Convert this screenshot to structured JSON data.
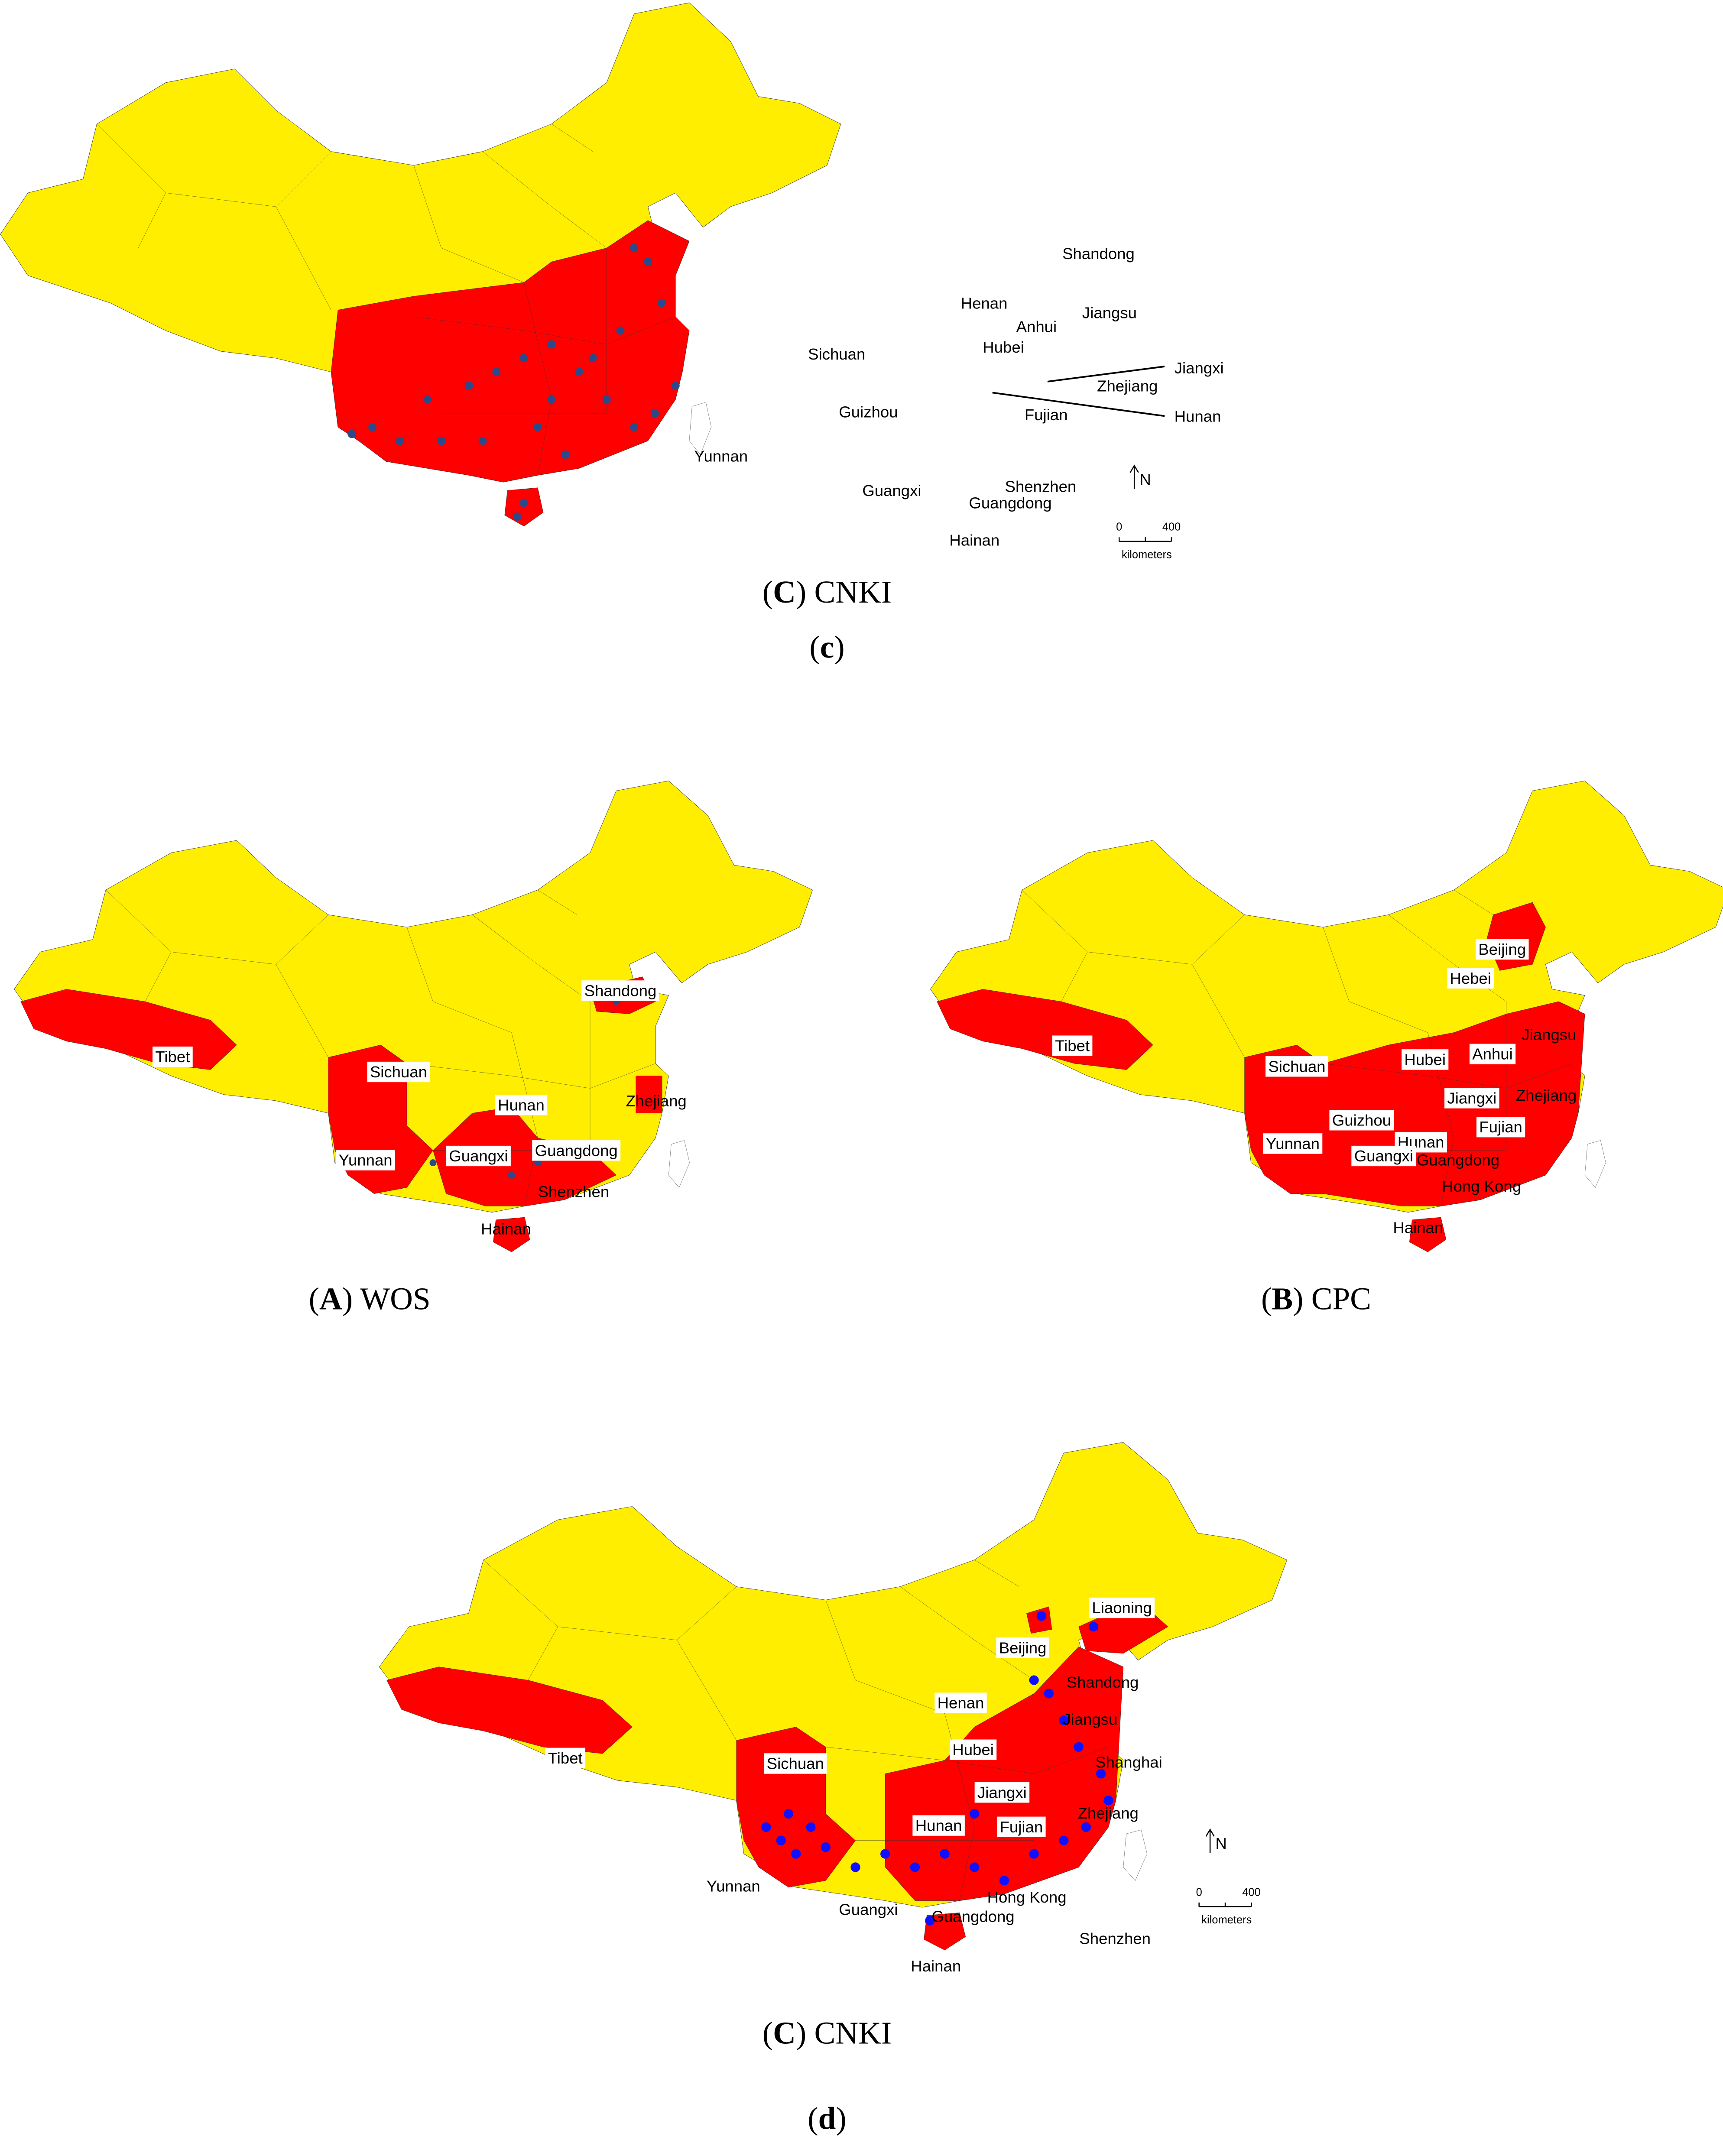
{
  "panels": [
    {
      "labels": [
        "Shandong",
        "Henan",
        "Jiangsu",
        "Anhui",
        "Sichuan",
        "Hubei",
        "Jiangxi",
        "Zhejiang",
        "Guizhou",
        "Fujian",
        "Hunan",
        "Yunnan",
        "Shenzhen",
        "Guangxi",
        "Guangdong",
        "Hainan"
      ],
      "scale": {
        "ticks": [
          0,
          400
        ],
        "unit": "kilometers",
        "north": "N"
      }
    },
    {
      "labels": [
        "Shandong",
        "Tibet",
        "Sichuan",
        "Hunan",
        "Zhejiang",
        "Yunnan",
        "Guangxi",
        "Guangdong",
        "Shenzhen",
        "Hainan"
      ]
    },
    {
      "labels": [
        "Beijing",
        "Hebei",
        "Tibet",
        "Jiangsu",
        "Sichuan",
        "Hubei",
        "Anhui",
        "Zhejiang",
        "Hunan",
        "Jiangxi",
        "Guizhou",
        "Fujian",
        "Yunnan",
        "Guangxi",
        "Guangdong",
        "Hong Kong",
        "Hainan"
      ]
    },
    {
      "labels": [
        "Liaoning",
        "Beijing",
        "Shandong",
        "Henan",
        "Jiangsu",
        "Tibet",
        "Sichuan",
        "Hubei",
        "Shanghai",
        "Jiangxi",
        "Zhejiang",
        "Hunan",
        "Fujian",
        "Yunnan",
        "Hong Kong",
        "Guangxi",
        "Guangdong",
        "Shenzhen",
        "Hainan"
      ],
      "scale": {
        "ticks": [
          0,
          400
        ],
        "unit": "kilometers",
        "north": "N"
      }
    }
  ],
  "captions": [
    [
      {
        "text": "(",
        "bold": false
      },
      {
        "text": "C",
        "bold": true
      },
      {
        "text": ") CNKI",
        "bold": false
      }
    ],
    [
      {
        "text": "(",
        "bold": false
      },
      {
        "text": "c",
        "bold": true
      },
      {
        "text": ")",
        "bold": false
      }
    ],
    [
      {
        "text": "(",
        "bold": false
      },
      {
        "text": "A",
        "bold": true
      },
      {
        "text": ") WOS",
        "bold": false
      }
    ],
    [
      {
        "text": "(",
        "bold": false
      },
      {
        "text": "B",
        "bold": true
      },
      {
        "text": ") CPC",
        "bold": false
      }
    ],
    [
      {
        "text": "(",
        "bold": false
      },
      {
        "text": "C",
        "bold": true
      },
      {
        "text": ") CNKI",
        "bold": false
      }
    ],
    [
      {
        "text": "(",
        "bold": false
      },
      {
        "text": "d",
        "bold": true
      },
      {
        "text": ")",
        "bold": false
      }
    ]
  ]
}
